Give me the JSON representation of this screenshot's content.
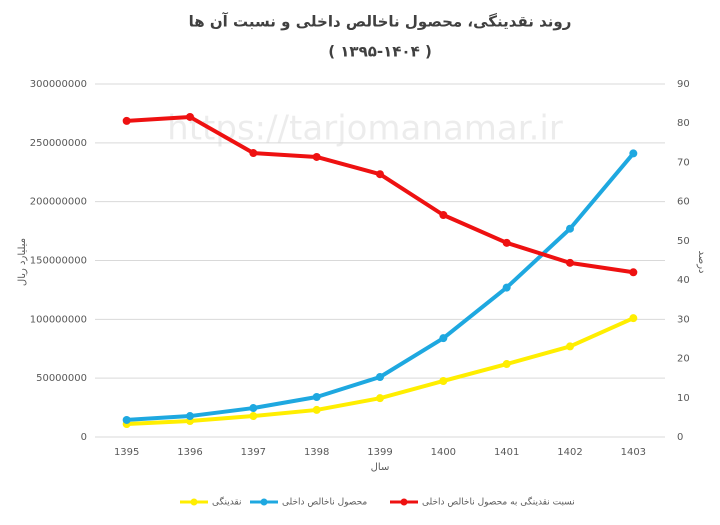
{
  "chart_data": {
    "type": "line",
    "title": "روند نقدینگی، محصول ناخالص داخلی و نسبت آن ها",
    "subtitle": "( ۱۳۹۵-۱۴۰۴ )",
    "watermark": "https://tarjomanamar.ir",
    "x_label": "سال",
    "y_label": "میلیارد ریال",
    "y2_label": "درصد",
    "categories": [
      "1395",
      "1396",
      "1397",
      "1398",
      "1399",
      "1400",
      "1401",
      "1402",
      "1403"
    ],
    "series": [
      {
        "name": "نقدینگی",
        "color": "#ffee00",
        "values": [
          11000000,
          13600000,
          17800000,
          23000000,
          33000000,
          47600000,
          62000000,
          77000000,
          101000000
        ]
      },
      {
        "name": "محصول ناخالص داخلی",
        "color": "#1ea8e0",
        "values": [
          14500000,
          17800000,
          24600000,
          34000000,
          51000000,
          84000000,
          127000000,
          177000000,
          241000000
        ]
      },
      {
        "name": "نسبت نقدینگی به محصول ناخالص داخلی",
        "color": "#ee1111",
        "axis": "y2",
        "values": [
          80.6,
          81.6,
          72.4,
          71.4,
          67,
          56.6,
          49.5,
          44.4,
          42
        ]
      }
    ],
    "ylim": [
      0,
      300000000
    ],
    "yticks": [
      0,
      50000000,
      100000000,
      150000000,
      200000000,
      250000000,
      300000000
    ],
    "y2lim": [
      0,
      90
    ],
    "y2ticks": [
      0,
      10,
      20,
      30,
      40,
      50,
      60,
      70,
      80,
      90
    ],
    "grid": true
  }
}
